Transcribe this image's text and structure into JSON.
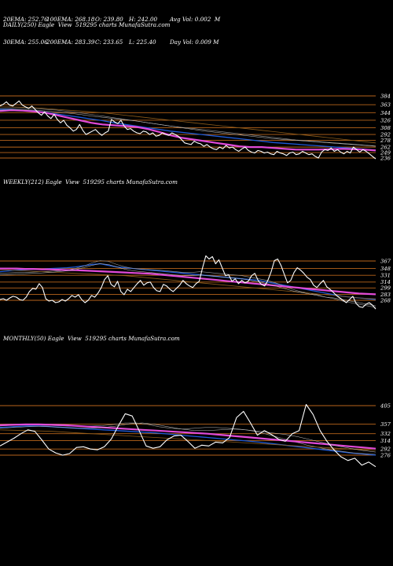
{
  "stats": {
    "ema20": "20EMA: 252.76",
    "ema30": "30EMA: 255.06",
    "ema100": "100EMA: 268.18",
    "ema200": "200EMA: 283.39",
    "open": "O: 239.80",
    "close": "C: 233.65",
    "high": "H: 242.00",
    "low": "L: 225.40",
    "avg_vol": "Avg Vol: 0.002  M",
    "day_vol": "Day Vol: 0.009 M"
  },
  "chart_data": [
    {
      "type": "line",
      "title": "DAILY(250) Eagle  View  519295 charts MunafaSutra.com",
      "y_ticks": [
        384,
        363,
        344,
        326,
        308,
        292,
        278,
        262,
        249,
        236
      ],
      "price": [
        360,
        364,
        370,
        362,
        360,
        366,
        372,
        362,
        358,
        354,
        360,
        352,
        344,
        338,
        346,
        336,
        330,
        340,
        328,
        320,
        326,
        314,
        308,
        300,
        304,
        316,
        302,
        292,
        296,
        300,
        304,
        296,
        290,
        296,
        300,
        328,
        322,
        318,
        326,
        312,
        304,
        306,
        300,
        296,
        294,
        300,
        298,
        292,
        296,
        288,
        290,
        296,
        292,
        290,
        296,
        292,
        288,
        280,
        272,
        270,
        268,
        276,
        272,
        270,
        264,
        268,
        262,
        258,
        256,
        262,
        258,
        266,
        260,
        262,
        256,
        252,
        258,
        262,
        254,
        250,
        248,
        254,
        252,
        248,
        250,
        246,
        244,
        252,
        248,
        246,
        242,
        248,
        250,
        244,
        246,
        252,
        248,
        244,
        246,
        240,
        236,
        250,
        256,
        254,
        260,
        252,
        256,
        250,
        246,
        252,
        248,
        262,
        256,
        250,
        256,
        252,
        246,
        240,
        234
      ],
      "ma_a": [
        352,
        352,
        350,
        348,
        345,
        341,
        337,
        333,
        329,
        325,
        320,
        316,
        312,
        308,
        304,
        300,
        297,
        294,
        291,
        288,
        285,
        282,
        279,
        276,
        273,
        271,
        269,
        267,
        265,
        263,
        261,
        259,
        257,
        255
      ],
      "ma_b": [
        354,
        355,
        355,
        354,
        352,
        350,
        347,
        344,
        340,
        336,
        332,
        328,
        324,
        320,
        316,
        312,
        309,
        306,
        303,
        300,
        297,
        294,
        291,
        288,
        285,
        282,
        279,
        277,
        275,
        273,
        271,
        269,
        267,
        265
      ],
      "ma_c": [
        358,
        358,
        357,
        356,
        354,
        352,
        350,
        348,
        346,
        344,
        341,
        338,
        335,
        332,
        329,
        326,
        323,
        320,
        317,
        314,
        311,
        308,
        305,
        302,
        299,
        296,
        293,
        290,
        287,
        284,
        281,
        278,
        275,
        272
      ],
      "ma_d": [
        348,
        350,
        349,
        347,
        344,
        338,
        332,
        326,
        320,
        316,
        314,
        312,
        310,
        305,
        298,
        290,
        284,
        280,
        276,
        272,
        268,
        264,
        262,
        262,
        260,
        258,
        256,
        256,
        256,
        257,
        258,
        257,
        256,
        254
      ],
      "ma_e": [
        350,
        351,
        351,
        350,
        348,
        346,
        343,
        340,
        336,
        333,
        330,
        327,
        324,
        320,
        316,
        312,
        308,
        304,
        300,
        297,
        294,
        291,
        288,
        285,
        282,
        280,
        278,
        276,
        274,
        272,
        270,
        268,
        266,
        264
      ]
    },
    {
      "type": "line",
      "title": "WEEKLY(212) Eagle  View  519295 charts MunafaSutra.com",
      "y_ticks": [
        367,
        348,
        331,
        314,
        299,
        283,
        268
      ],
      "price": [
        270,
        272,
        268,
        274,
        278,
        276,
        270,
        268,
        276,
        290,
        298,
        296,
        310,
        300,
        272,
        266,
        268,
        262,
        264,
        270,
        266,
        272,
        280,
        276,
        282,
        270,
        262,
        268,
        280,
        276,
        286,
        300,
        320,
        330,
        308,
        302,
        316,
        290,
        282,
        296,
        290,
        300,
        310,
        318,
        306,
        312,
        314,
        300,
        292,
        290,
        308,
        304,
        296,
        290,
        298,
        306,
        318,
        310,
        304,
        300,
        310,
        316,
        350,
        380,
        372,
        378,
        360,
        370,
        350,
        330,
        332,
        316,
        322,
        310,
        318,
        312,
        316,
        330,
        336,
        318,
        308,
        304,
        318,
        340,
        368,
        372,
        356,
        334,
        312,
        318,
        338,
        350,
        344,
        336,
        326,
        320,
        306,
        300,
        310,
        318,
        302,
        296,
        288,
        280,
        274,
        268,
        262,
        270,
        278,
        260,
        252,
        250,
        258,
        262,
        256,
        246
      ],
      "ma_a": [
        340,
        342,
        344,
        345,
        346,
        347,
        348,
        349,
        350,
        352,
        355,
        358,
        360,
        356,
        352,
        350,
        348,
        346,
        344,
        342,
        340,
        338,
        336,
        334,
        332,
        330,
        328,
        326,
        324,
        322,
        320,
        318,
        314,
        310,
        306,
        302,
        298,
        294,
        290,
        286,
        282,
        278,
        276,
        274,
        272,
        270
      ],
      "ma_b": [
        336,
        337,
        338,
        338,
        339,
        340,
        341,
        342,
        344,
        348,
        354,
        362,
        368,
        366,
        358,
        352,
        348,
        346,
        345,
        344,
        342,
        340,
        338,
        338,
        340,
        338,
        336,
        334,
        332,
        330,
        326,
        322,
        318,
        312,
        304,
        296,
        290,
        286,
        282,
        276,
        272,
        266,
        262,
        258,
        254,
        250
      ],
      "ma_c": [
        344,
        344,
        343,
        342,
        341,
        340,
        339,
        338,
        337,
        336,
        335,
        334,
        333,
        332,
        331,
        330,
        328,
        326,
        324,
        322,
        320,
        318,
        316,
        314,
        312,
        310,
        308,
        306,
        304,
        302,
        300,
        298,
        296,
        294,
        292,
        290,
        288,
        286,
        284,
        282,
        280,
        278,
        276,
        274,
        273,
        272
      ],
      "ma_d": [
        348,
        348,
        348,
        347,
        347,
        346,
        346,
        345,
        344,
        344,
        343,
        342,
        341,
        340,
        339,
        338,
        337,
        336,
        335,
        333,
        331,
        329,
        327,
        325,
        323,
        321,
        319,
        317,
        315,
        313,
        311,
        309,
        307,
        305,
        303,
        301,
        299,
        297,
        295,
        293,
        291,
        289,
        287,
        285,
        284,
        283
      ],
      "ma_e": [
        332,
        333,
        334,
        335,
        336,
        337,
        338,
        340,
        342,
        345,
        350,
        356,
        360,
        358,
        352,
        346,
        342,
        340,
        338,
        336,
        334,
        332,
        330,
        330,
        332,
        330,
        328,
        326,
        324,
        322,
        318,
        314,
        310,
        304,
        298,
        292,
        288,
        284,
        280,
        276,
        274,
        270,
        266,
        262,
        258,
        254
      ]
    },
    {
      "type": "line",
      "title": "MONTHLY(50) Eagle  View  519295 charts MunafaSutra.com",
      "y_ticks": [
        405,
        357,
        332,
        314,
        292,
        276
      ],
      "price": [
        300,
        310,
        320,
        332,
        342,
        338,
        316,
        292,
        282,
        276,
        280,
        296,
        298,
        292,
        290,
        298,
        318,
        352,
        384,
        378,
        340,
        300,
        294,
        298,
        316,
        326,
        328,
        312,
        294,
        302,
        300,
        310,
        308,
        322,
        374,
        390,
        360,
        328,
        340,
        330,
        318,
        312,
        332,
        340,
        408,
        382,
        340,
        312,
        290,
        272,
        262,
        268,
        250,
        258,
        246
      ],
      "ma_a": [
        348,
        350,
        352,
        352,
        350,
        348,
        346,
        344,
        342,
        340,
        338,
        336,
        334,
        331,
        328,
        325,
        322,
        319,
        316,
        313,
        310,
        306,
        302,
        298,
        294,
        290,
        286,
        282,
        279,
        276
      ],
      "ma_b": [
        352,
        354,
        355,
        355,
        354,
        353,
        352,
        352,
        352,
        353,
        356,
        360,
        360,
        356,
        350,
        346,
        344,
        346,
        348,
        348,
        346,
        344,
        340,
        334,
        326,
        318,
        310,
        302,
        296,
        290,
        286,
        282,
        280,
        278
      ],
      "ma_c": [
        342,
        341,
        340,
        339,
        338,
        336,
        334,
        332,
        330,
        328,
        326,
        324,
        322,
        320,
        318,
        316,
        314,
        312,
        310,
        308,
        306,
        304,
        302,
        300,
        298,
        296,
        294,
        292,
        290,
        288
      ],
      "ma_d": [
        354,
        355,
        356,
        356,
        355,
        354,
        352,
        350,
        348,
        346,
        344,
        342,
        340,
        338,
        336,
        334,
        332,
        329,
        326,
        323,
        320,
        317,
        314,
        311,
        308,
        305,
        302,
        299,
        296,
        293
      ],
      "ma_e": [
        346,
        348,
        350,
        351,
        350,
        348,
        346,
        346,
        348,
        352,
        358,
        360,
        356,
        350,
        344,
        340,
        340,
        342,
        344,
        342,
        338,
        334,
        330,
        324,
        316,
        308,
        300,
        294,
        288,
        284
      ]
    }
  ]
}
